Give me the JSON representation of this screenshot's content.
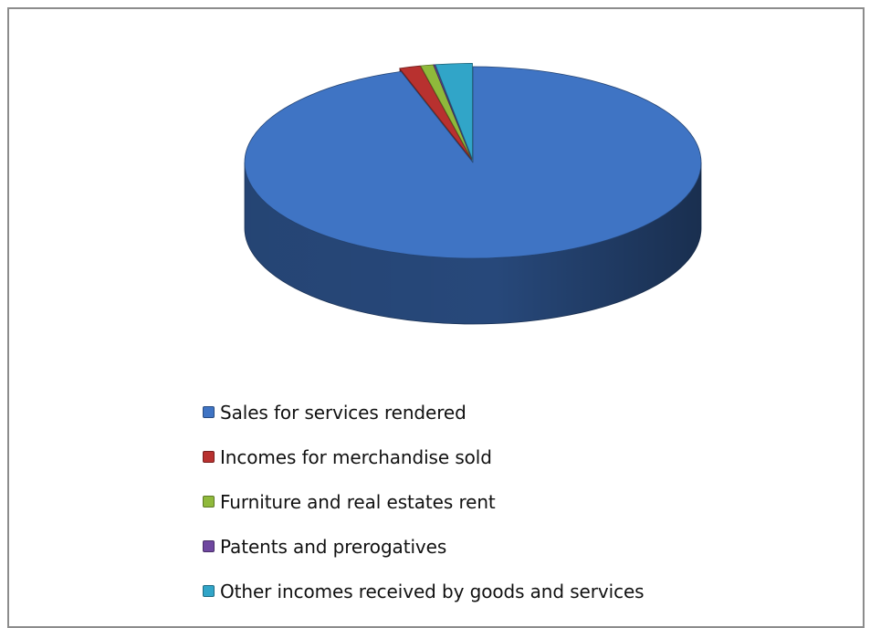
{
  "chart_data": {
    "type": "pie",
    "title": "",
    "style": "3d-exploded",
    "legend_position": "bottom",
    "categories": [
      "Sales for services rendered",
      "Incomes for merchandise sold",
      "Furniture and real estates rent",
      "Patents and prerogatives",
      "Other incomes received  by goods and services"
    ],
    "values": [
      94.9,
      1.5,
      0.9,
      0.1,
      2.6
    ],
    "unit": "percent (estimated share)",
    "colors": [
      "#3f74c4",
      "#b8312f",
      "#8fb93b",
      "#6f47a0",
      "#31a5c8"
    ]
  }
}
